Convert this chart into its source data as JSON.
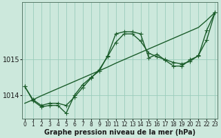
{
  "xlabel": "Graphe pression niveau de la mer (hPa)",
  "background_color": "#cce8dc",
  "plot_bg_color": "#cce8dc",
  "grid_color": "#99ccbb",
  "line_color": "#1a5c2a",
  "x_ticks": [
    0,
    1,
    2,
    3,
    4,
    5,
    6,
    7,
    8,
    9,
    10,
    11,
    12,
    13,
    14,
    15,
    16,
    17,
    18,
    19,
    20,
    21,
    22,
    23
  ],
  "xlim": [
    -0.3,
    23.3
  ],
  "ylim": [
    1013.35,
    1016.6
  ],
  "yticks": [
    1014,
    1015
  ],
  "series_jagged": [
    1014.25,
    1013.85,
    1013.68,
    1013.72,
    1013.72,
    1013.5,
    1014.0,
    1014.3,
    1014.5,
    1014.68,
    1015.1,
    1015.72,
    1015.78,
    1015.78,
    1015.72,
    1015.05,
    1015.15,
    1014.98,
    1014.82,
    1014.82,
    1015.0,
    1015.1,
    1015.82,
    1016.32
  ],
  "series_smooth": [
    1014.25,
    1013.88,
    1013.72,
    1013.78,
    1013.78,
    1013.72,
    1013.95,
    1014.22,
    1014.48,
    1014.72,
    1015.08,
    1015.48,
    1015.72,
    1015.72,
    1015.52,
    1015.18,
    1015.08,
    1015.0,
    1014.92,
    1014.88,
    1014.95,
    1015.12,
    1015.55,
    1016.32
  ],
  "series_linear": [
    1013.78,
    1013.88,
    1013.99,
    1014.09,
    1014.19,
    1014.29,
    1014.39,
    1014.49,
    1014.59,
    1014.69,
    1014.79,
    1014.9,
    1015.0,
    1015.1,
    1015.2,
    1015.3,
    1015.4,
    1015.5,
    1015.6,
    1015.7,
    1015.8,
    1015.9,
    1016.1,
    1016.32
  ],
  "marker_size": 4,
  "line_width": 1.0,
  "xlabel_fontsize": 7,
  "xlabel_fontweight": "bold",
  "ytick_fontsize": 7,
  "xtick_fontsize": 5.5
}
